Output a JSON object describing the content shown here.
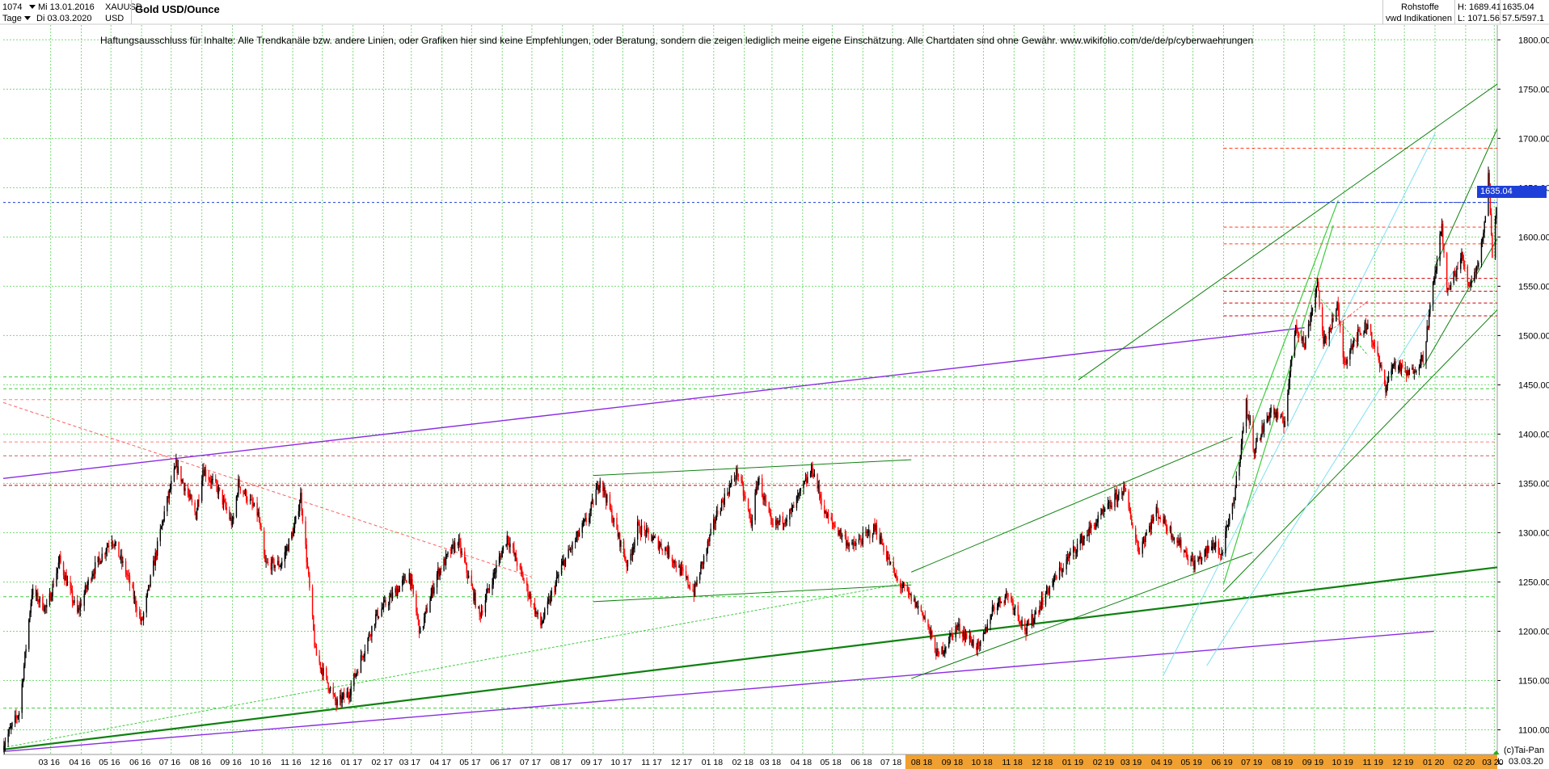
{
  "header": {
    "bars": "1074",
    "from_date": "Mi 13.01.2016",
    "symbol": "XAUUSD",
    "interval": "Tage",
    "to_date": "Di 03.03.2020",
    "currency": "USD",
    "title": "Gold USD/Ounce",
    "category": "Rohstoffe",
    "provider": "vwd Indikationen",
    "high_label": "H: 1689.41",
    "low_label": "L: 1071.56",
    "last_value": "1635.04",
    "extra": "57.5/597.1"
  },
  "disclaimer": "Haftungsausschluss für Inhalte: Alle Trendkanäle bzw. andere Linien, oder Grafiken hier sind keine Empfehlungen, oder Beratung, sondern die zeigen lediglich meine eigene Einschätzung. Alle Chartdaten sind ohne Gewähr.  www.wikifolio.com/de/de/p/cyberwaehrungen",
  "footer": {
    "copyright": "(c)Tai-Pan",
    "last_date": "03.03.20",
    "axis_mode": "L"
  },
  "colors": {
    "up": "#000000",
    "down": "#ff0000",
    "grid": "#3fcc3f",
    "current_line": "#1e3fd8",
    "axis_highlight": "#f0a030"
  },
  "chart_data": {
    "type": "line",
    "ylim": [
      1075,
      1815
    ],
    "y_ticks": [
      1100,
      1150,
      1200,
      1250,
      1300,
      1350,
      1400,
      1450,
      1500,
      1550,
      1600,
      1650,
      1700,
      1750,
      1800
    ],
    "y_tick_labels": [
      "1100.00",
      "1150.00",
      "1200.00",
      "1250.00",
      "1300.00",
      "1350.00",
      "1400.00",
      "1450.00",
      "1500.00",
      "1550.00",
      "1600.00",
      "1650.00",
      "1700.00",
      "1750.00",
      "1800.00"
    ],
    "current_value": 1635.04,
    "current_label": "1635.04",
    "x_labels": [
      "03 16",
      "04 16",
      "05 16",
      "06 16",
      "07 16",
      "08 16",
      "09 16",
      "10 16",
      "11 16",
      "12 16",
      "01 17",
      "02 17",
      "03 17",
      "04 17",
      "05 17",
      "06 17",
      "07 17",
      "08 17",
      "09 17",
      "10 17",
      "11 17",
      "12 17",
      "01 18",
      "02 18",
      "03 18",
      "04 18",
      "05 18",
      "06 18",
      "07 18",
      "08 18",
      "09 18",
      "10 18",
      "11 18",
      "12 18",
      "01 19",
      "02 19",
      "03 19",
      "04 19",
      "05 19",
      "06 19",
      "07 19",
      "08 19",
      "09 19",
      "10 19",
      "11 19",
      "12 19",
      "01 20",
      "02 20",
      "03 20"
    ],
    "x_label_start_month": "2016-03",
    "x_highlight_from": "08 18",
    "anchors": [
      [
        "2016-01-13",
        1085
      ],
      [
        "2016-01-29",
        1118
      ],
      [
        "2016-02-11",
        1240
      ],
      [
        "2016-02-26",
        1222
      ],
      [
        "2016-03-10",
        1272
      ],
      [
        "2016-03-28",
        1218
      ],
      [
        "2016-04-11",
        1258
      ],
      [
        "2016-05-02",
        1295
      ],
      [
        "2016-05-18",
        1255
      ],
      [
        "2016-06-01",
        1208
      ],
      [
        "2016-06-24",
        1320
      ],
      [
        "2016-07-06",
        1368
      ],
      [
        "2016-07-26",
        1318
      ],
      [
        "2016-08-02",
        1365
      ],
      [
        "2016-08-18",
        1342
      ],
      [
        "2016-09-01",
        1308
      ],
      [
        "2016-09-07",
        1350
      ],
      [
        "2016-09-27",
        1318
      ],
      [
        "2016-10-04",
        1268
      ],
      [
        "2016-10-20",
        1268
      ],
      [
        "2016-11-03",
        1306
      ],
      [
        "2016-11-09",
        1338
      ],
      [
        "2016-11-24",
        1178
      ],
      [
        "2016-12-15",
        1126
      ],
      [
        "2016-12-28",
        1138
      ],
      [
        "2017-01-24",
        1215
      ],
      [
        "2017-02-27",
        1258
      ],
      [
        "2017-03-10",
        1198
      ],
      [
        "2017-03-27",
        1258
      ],
      [
        "2017-04-17",
        1292
      ],
      [
        "2017-05-09",
        1216
      ],
      [
        "2017-06-06",
        1296
      ],
      [
        "2017-07-10",
        1206
      ],
      [
        "2017-08-01",
        1268
      ],
      [
        "2017-08-28",
        1318
      ],
      [
        "2017-09-08",
        1355
      ],
      [
        "2017-10-06",
        1266
      ],
      [
        "2017-10-16",
        1306
      ],
      [
        "2017-11-15",
        1282
      ],
      [
        "2017-12-12",
        1240
      ],
      [
        "2018-01-05",
        1322
      ],
      [
        "2018-01-25",
        1362
      ],
      [
        "2018-02-08",
        1310
      ],
      [
        "2018-02-15",
        1355
      ],
      [
        "2018-03-01",
        1305
      ],
      [
        "2018-03-20",
        1320
      ],
      [
        "2018-04-11",
        1365
      ],
      [
        "2018-04-24",
        1318
      ],
      [
        "2018-05-21",
        1285
      ],
      [
        "2018-06-14",
        1305
      ],
      [
        "2018-07-05",
        1252
      ],
      [
        "2018-08-01",
        1218
      ],
      [
        "2018-08-16",
        1174
      ],
      [
        "2018-09-04",
        1205
      ],
      [
        "2018-09-27",
        1182
      ],
      [
        "2018-10-11",
        1225
      ],
      [
        "2018-10-26",
        1238
      ],
      [
        "2018-11-13",
        1200
      ],
      [
        "2018-12-04",
        1240
      ],
      [
        "2018-12-31",
        1282
      ],
      [
        "2019-02-20",
        1345
      ],
      [
        "2019-03-07",
        1282
      ],
      [
        "2019-03-25",
        1322
      ],
      [
        "2019-05-02",
        1268
      ],
      [
        "2019-05-24",
        1290
      ],
      [
        "2019-05-29",
        1275
      ],
      [
        "2019-06-11",
        1330
      ],
      [
        "2019-06-24",
        1430
      ],
      [
        "2019-07-02",
        1385
      ],
      [
        "2019-07-19",
        1425
      ],
      [
        "2019-08-01",
        1410
      ],
      [
        "2019-08-13",
        1512
      ],
      [
        "2019-08-22",
        1490
      ],
      [
        "2019-09-04",
        1555
      ],
      [
        "2019-09-10",
        1490
      ],
      [
        "2019-09-24",
        1530
      ],
      [
        "2019-10-01",
        1472
      ],
      [
        "2019-10-10",
        1495
      ],
      [
        "2019-10-25",
        1512
      ],
      [
        "2019-11-12",
        1448
      ],
      [
        "2019-11-20",
        1472
      ],
      [
        "2019-12-05",
        1460
      ],
      [
        "2019-12-20",
        1478
      ],
      [
        "2020-01-08",
        1612
      ],
      [
        "2020-01-13",
        1542
      ],
      [
        "2020-01-28",
        1580
      ],
      [
        "2020-02-04",
        1552
      ],
      [
        "2020-02-12",
        1568
      ],
      [
        "2020-02-20",
        1610
      ],
      [
        "2020-02-24",
        1670
      ],
      [
        "2020-02-28",
        1580
      ],
      [
        "2020-03-03",
        1635
      ]
    ],
    "horizontal_levels": [
      {
        "value": 1635.04,
        "color": "#1e3fd8",
        "style": "dashed"
      },
      {
        "value": 1435,
        "color": "#ff8080",
        "style": "dashed"
      },
      {
        "value": 1392,
        "color": "#ff8080",
        "style": "dashed"
      },
      {
        "value": 1235,
        "color": "#3fcc3f",
        "style": "dashed"
      },
      {
        "value": 1122,
        "color": "#3fcc3f",
        "style": "dashed"
      },
      {
        "value": 1690,
        "color": "#ff4020",
        "style": "dashed"
      },
      {
        "value": 1610,
        "color": "#ff4020",
        "style": "dashed"
      },
      {
        "value": 1593,
        "color": "#ff4020",
        "style": "dashed"
      },
      {
        "value": 1558,
        "color": "#cc0000",
        "style": "dashed"
      },
      {
        "value": 1545,
        "color": "#cc0000",
        "style": "dashed"
      },
      {
        "value": 1533,
        "color": "#cc0000",
        "style": "dashed"
      },
      {
        "value": 1520,
        "color": "#cc0000",
        "style": "dashed"
      },
      {
        "value": 1446,
        "color": "#3fcc3f",
        "style": "dashed"
      },
      {
        "value": 1458,
        "color": "#3fcc3f",
        "style": "dashed"
      },
      {
        "value": 1348,
        "color": "#cc0000",
        "style": "dashed"
      },
      {
        "value": 1378,
        "color": "#cc6060",
        "style": "dashed"
      }
    ],
    "trendlines": [
      {
        "from": [
          "2016-01-13",
          1355
        ],
        "to": [
          "2019-08-22",
          1508
        ],
        "color": "#8a2be2",
        "width": 1.4
      },
      {
        "from": [
          "2016-01-13",
          1078
        ],
        "to": [
          "2019-12-31",
          1200
        ],
        "color": "#8a2be2",
        "width": 1.4
      },
      {
        "from": [
          "2016-01-13",
          1080
        ],
        "to": [
          "2020-04-15",
          1270
        ],
        "color": "#108010",
        "width": 2.2
      },
      {
        "from": [
          "2016-01-13",
          1432
        ],
        "to": [
          "2017-07-01",
          1255
        ],
        "color": "#ff6060",
        "width": 1,
        "dash": "4,3"
      },
      {
        "from": [
          "2016-01-13",
          1082
        ],
        "to": [
          "2018-07-20",
          1250
        ],
        "color": "#3fcc3f",
        "width": 1,
        "dash": "3,2"
      },
      {
        "from": [
          "2017-09-01",
          1358
        ],
        "to": [
          "2018-07-20",
          1374
        ],
        "color": "#108010",
        "width": 1
      },
      {
        "from": [
          "2017-09-01",
          1230
        ],
        "to": [
          "2018-07-20",
          1247
        ],
        "color": "#108010",
        "width": 1
      },
      {
        "from": [
          "2018-07-20",
          1152
        ],
        "to": [
          "2019-06-30",
          1280
        ],
        "color": "#108010",
        "width": 1
      },
      {
        "from": [
          "2018-07-20",
          1260
        ],
        "to": [
          "2019-06-10",
          1397
        ],
        "color": "#108010",
        "width": 1
      },
      {
        "from": [
          "2019-01-05",
          1455
        ],
        "to": [
          "2020-04-01",
          1775
        ],
        "color": "#108010",
        "width": 1
      },
      {
        "from": [
          "2019-06-01",
          1240
        ],
        "to": [
          "2020-04-01",
          1555
        ],
        "color": "#108010",
        "width": 1
      },
      {
        "from": [
          "2019-06-01",
          1248
        ],
        "to": [
          "2019-09-20",
          1612
        ],
        "color": "#3fcc3f",
        "width": 1.2
      },
      {
        "from": [
          "2019-06-10",
          1355
        ],
        "to": [
          "2019-09-25",
          1637
        ],
        "color": "#3fcc3f",
        "width": 1.2
      },
      {
        "from": [
          "2019-04-01",
          1155
        ],
        "to": [
          "2020-01-01",
          1705
        ],
        "color": "#80e0f0",
        "width": 1
      },
      {
        "from": [
          "2019-05-15",
          1165
        ],
        "to": [
          "2020-02-01",
          1585
        ],
        "color": "#80e0f0",
        "width": 1
      },
      {
        "from": [
          "2019-12-20",
          1468
        ],
        "to": [
          "2020-03-05",
          1600
        ],
        "color": "#108010",
        "width": 1
      },
      {
        "from": [
          "2020-01-01",
          1570
        ],
        "to": [
          "2020-03-05",
          1712
        ],
        "color": "#108010",
        "width": 1
      },
      {
        "from": [
          "2019-09-05",
          1540
        ],
        "to": [
          "2019-10-25",
          1480
        ],
        "color": "#3fcc3f",
        "width": 1,
        "dash": "3,2"
      },
      {
        "from": [
          "2019-09-05",
          1495
        ],
        "to": [
          "2019-10-25",
          1535
        ],
        "color": "#ff6060",
        "width": 1,
        "dash": "3,2"
      }
    ]
  }
}
